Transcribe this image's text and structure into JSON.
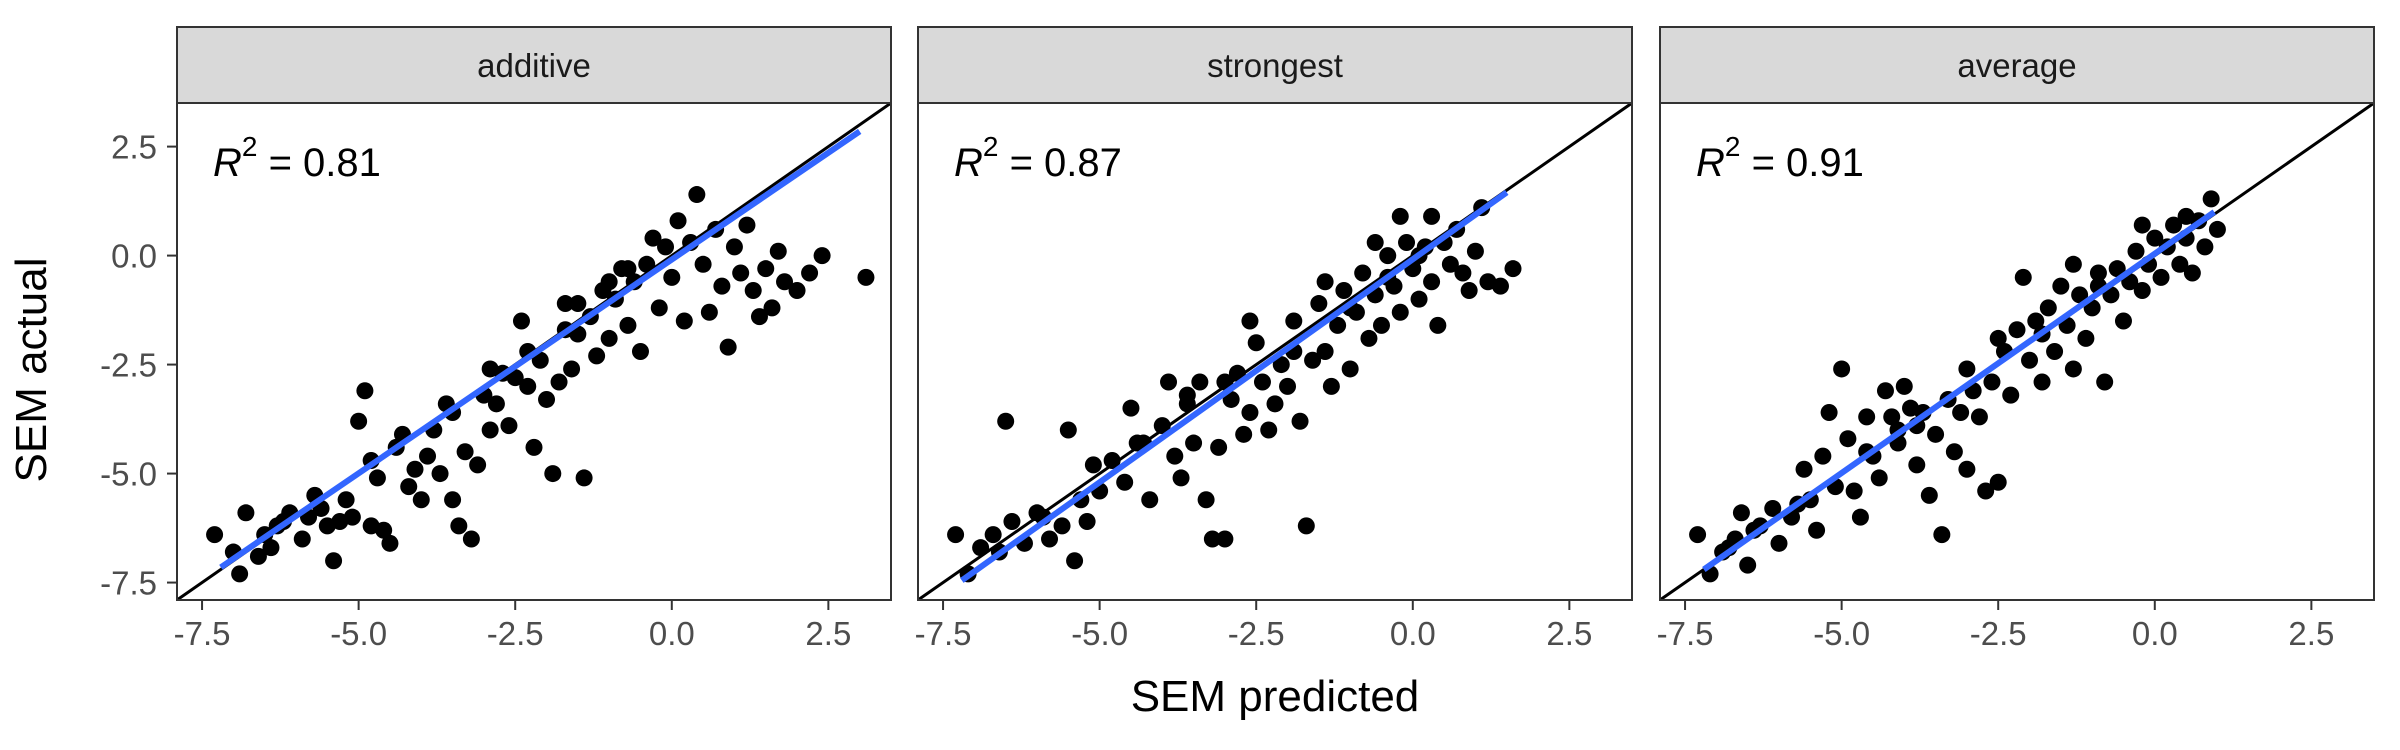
{
  "chart_data": {
    "type": "scatter",
    "xlabel": "SEM predicted",
    "ylabel": "SEM actual",
    "xlim": [
      -7.9,
      3.5
    ],
    "ylim": [
      -7.9,
      3.5
    ],
    "x_ticks": [
      -7.5,
      -5.0,
      -2.5,
      0.0,
      2.5
    ],
    "x_tick_labels": [
      "-7.5",
      "-5.0",
      "-2.5",
      "0.0",
      "2.5"
    ],
    "y_ticks": [
      -7.5,
      -5.0,
      -2.5,
      0.0,
      2.5
    ],
    "y_tick_labels": [
      "-7.5",
      "-5.0",
      "-2.5",
      "0.0",
      "2.5"
    ],
    "grid": false,
    "identity_line": true,
    "colors": {
      "points": "#000000",
      "fit": "#3366ff",
      "identity": "#000000",
      "strip": "#d9d9d9",
      "panel_border": "#333333"
    },
    "panels": [
      {
        "strip": "additive",
        "annotation": {
          "r": "R",
          "sup": "2",
          "rest": " = 0.81"
        },
        "fit": {
          "x": [
            -7.2,
            3.0
          ],
          "y": [
            -7.15,
            2.85
          ]
        },
        "points": [
          [
            -7.3,
            -6.4
          ],
          [
            -7.0,
            -6.8
          ],
          [
            -6.8,
            -5.9
          ],
          [
            -6.9,
            -7.3
          ],
          [
            -6.6,
            -6.9
          ],
          [
            -6.5,
            -6.4
          ],
          [
            -6.4,
            -6.7
          ],
          [
            -6.2,
            -6.1
          ],
          [
            -6.1,
            -5.9
          ],
          [
            -5.9,
            -6.5
          ],
          [
            -5.8,
            -6.0
          ],
          [
            -5.7,
            -5.5
          ],
          [
            -5.5,
            -6.2
          ],
          [
            -5.4,
            -7.0
          ],
          [
            -5.3,
            -6.1
          ],
          [
            -5.2,
            -5.6
          ],
          [
            -5.1,
            -6.0
          ],
          [
            -5.0,
            -3.8
          ],
          [
            -4.9,
            -3.1
          ],
          [
            -4.8,
            -6.2
          ],
          [
            -4.7,
            -5.1
          ],
          [
            -4.6,
            -6.3
          ],
          [
            -4.5,
            -6.6
          ],
          [
            -4.4,
            -4.4
          ],
          [
            -4.3,
            -4.1
          ],
          [
            -4.2,
            -5.3
          ],
          [
            -4.1,
            -4.9
          ],
          [
            -4.0,
            -5.6
          ],
          [
            -3.9,
            -4.6
          ],
          [
            -3.8,
            -4.0
          ],
          [
            -3.7,
            -5.0
          ],
          [
            -3.6,
            -3.4
          ],
          [
            -3.5,
            -5.6
          ],
          [
            -3.4,
            -6.2
          ],
          [
            -3.3,
            -4.5
          ],
          [
            -3.2,
            -6.5
          ],
          [
            -3.1,
            -4.8
          ],
          [
            -3.0,
            -3.2
          ],
          [
            -2.9,
            -4.0
          ],
          [
            -2.8,
            -3.4
          ],
          [
            -2.7,
            -2.7
          ],
          [
            -2.6,
            -3.9
          ],
          [
            -2.5,
            -2.8
          ],
          [
            -2.4,
            -1.5
          ],
          [
            -2.3,
            -3.0
          ],
          [
            -2.2,
            -4.4
          ],
          [
            -2.1,
            -2.4
          ],
          [
            -2.0,
            -3.3
          ],
          [
            -1.9,
            -5.0
          ],
          [
            -1.8,
            -2.9
          ],
          [
            -1.7,
            -1.1
          ],
          [
            -1.6,
            -2.6
          ],
          [
            -1.5,
            -1.8
          ],
          [
            -1.4,
            -5.1
          ],
          [
            -1.3,
            -1.4
          ],
          [
            -1.2,
            -2.3
          ],
          [
            -1.1,
            -0.8
          ],
          [
            -1.0,
            -1.9
          ],
          [
            -0.9,
            -1.0
          ],
          [
            -0.8,
            -0.3
          ],
          [
            -0.7,
            -1.6
          ],
          [
            -0.6,
            -0.6
          ],
          [
            -0.5,
            -2.2
          ],
          [
            -0.4,
            -0.2
          ],
          [
            -0.3,
            0.4
          ],
          [
            -0.2,
            -1.2
          ],
          [
            -0.1,
            0.2
          ],
          [
            0.0,
            -0.5
          ],
          [
            0.1,
            0.8
          ],
          [
            0.2,
            -1.5
          ],
          [
            0.3,
            0.3
          ],
          [
            0.4,
            1.4
          ],
          [
            0.5,
            -0.2
          ],
          [
            0.6,
            -1.3
          ],
          [
            0.7,
            0.6
          ],
          [
            0.8,
            -0.7
          ],
          [
            0.9,
            -2.1
          ],
          [
            1.0,
            0.2
          ],
          [
            1.1,
            -0.4
          ],
          [
            1.2,
            0.7
          ],
          [
            1.3,
            -0.8
          ],
          [
            1.4,
            -1.4
          ],
          [
            1.5,
            -0.3
          ],
          [
            1.6,
            -1.2
          ],
          [
            1.7,
            0.1
          ],
          [
            1.8,
            -0.6
          ],
          [
            2.0,
            -0.8
          ],
          [
            2.2,
            -0.4
          ],
          [
            2.4,
            0.0
          ],
          [
            3.1,
            -0.5
          ],
          [
            -6.3,
            -6.2
          ],
          [
            -5.6,
            -5.8
          ],
          [
            -4.8,
            -4.7
          ],
          [
            -3.5,
            -3.6
          ],
          [
            -2.9,
            -2.6
          ],
          [
            -2.3,
            -2.2
          ],
          [
            -1.7,
            -1.7
          ],
          [
            -1.5,
            -1.1
          ],
          [
            -1.0,
            -0.6
          ],
          [
            -0.7,
            -0.3
          ]
        ]
      },
      {
        "strip": "strongest",
        "annotation": {
          "r": "R",
          "sup": "2",
          "rest": " = 0.87"
        },
        "fit": {
          "x": [
            -7.2,
            1.5
          ],
          "y": [
            -7.45,
            1.45
          ]
        },
        "points": [
          [
            -7.3,
            -6.4
          ],
          [
            -7.1,
            -7.3
          ],
          [
            -6.9,
            -6.7
          ],
          [
            -6.7,
            -6.4
          ],
          [
            -6.5,
            -3.8
          ],
          [
            -6.4,
            -6.1
          ],
          [
            -6.2,
            -6.6
          ],
          [
            -6.0,
            -5.9
          ],
          [
            -5.8,
            -6.5
          ],
          [
            -5.6,
            -6.2
          ],
          [
            -5.5,
            -4.0
          ],
          [
            -5.4,
            -7.0
          ],
          [
            -5.3,
            -5.6
          ],
          [
            -5.2,
            -6.1
          ],
          [
            -5.0,
            -5.4
          ],
          [
            -4.8,
            -4.7
          ],
          [
            -4.6,
            -5.2
          ],
          [
            -4.5,
            -3.5
          ],
          [
            -4.4,
            -4.3
          ],
          [
            -4.2,
            -5.6
          ],
          [
            -4.0,
            -3.9
          ],
          [
            -3.9,
            -2.9
          ],
          [
            -3.8,
            -4.6
          ],
          [
            -3.7,
            -5.1
          ],
          [
            -3.6,
            -3.2
          ],
          [
            -3.5,
            -4.3
          ],
          [
            -3.4,
            -2.9
          ],
          [
            -3.3,
            -5.6
          ],
          [
            -3.2,
            -6.5
          ],
          [
            -3.1,
            -4.4
          ],
          [
            -3.0,
            -6.5
          ],
          [
            -2.9,
            -3.3
          ],
          [
            -2.8,
            -2.7
          ],
          [
            -2.7,
            -4.1
          ],
          [
            -2.6,
            -3.6
          ],
          [
            -2.5,
            -2.0
          ],
          [
            -2.4,
            -2.9
          ],
          [
            -2.3,
            -4.0
          ],
          [
            -2.2,
            -3.4
          ],
          [
            -2.1,
            -2.5
          ],
          [
            -2.0,
            -3.0
          ],
          [
            -1.9,
            -1.5
          ],
          [
            -1.8,
            -3.8
          ],
          [
            -1.7,
            -6.2
          ],
          [
            -1.6,
            -2.4
          ],
          [
            -1.5,
            -1.1
          ],
          [
            -1.4,
            -2.2
          ],
          [
            -1.3,
            -3.0
          ],
          [
            -1.2,
            -1.6
          ],
          [
            -1.1,
            -0.8
          ],
          [
            -1.0,
            -2.6
          ],
          [
            -0.9,
            -1.3
          ],
          [
            -0.8,
            -0.4
          ],
          [
            -0.7,
            -1.9
          ],
          [
            -0.6,
            -0.9
          ],
          [
            -0.5,
            -1.6
          ],
          [
            -0.4,
            0.0
          ],
          [
            -0.3,
            -0.7
          ],
          [
            -0.2,
            -1.3
          ],
          [
            -0.1,
            0.3
          ],
          [
            0.0,
            -0.3
          ],
          [
            0.1,
            -1.0
          ],
          [
            0.2,
            0.2
          ],
          [
            0.3,
            -0.6
          ],
          [
            0.4,
            -1.6
          ],
          [
            0.5,
            0.3
          ],
          [
            0.6,
            -0.2
          ],
          [
            0.7,
            0.6
          ],
          [
            0.8,
            -0.4
          ],
          [
            0.9,
            -0.8
          ],
          [
            1.0,
            0.1
          ],
          [
            1.1,
            1.1
          ],
          [
            1.2,
            -0.6
          ],
          [
            1.4,
            -0.7
          ],
          [
            1.6,
            -0.3
          ],
          [
            -0.2,
            0.9
          ],
          [
            0.3,
            0.9
          ],
          [
            -0.6,
            0.3
          ],
          [
            -1.4,
            -0.6
          ],
          [
            -2.6,
            -1.5
          ],
          [
            -3.6,
            -3.4
          ],
          [
            -4.3,
            -4.3
          ],
          [
            -5.1,
            -4.8
          ],
          [
            -5.9,
            -6.0
          ],
          [
            -6.6,
            -6.8
          ],
          [
            -3.0,
            -2.9
          ],
          [
            -1.9,
            -2.2
          ],
          [
            -1.0,
            -1.2
          ],
          [
            -0.4,
            -0.5
          ],
          [
            0.1,
            0.0
          ]
        ]
      },
      {
        "strip": "average",
        "annotation": {
          "r": "R",
          "sup": "2",
          "rest": " = 0.91"
        },
        "fit": {
          "x": [
            -7.2,
            0.95
          ],
          "y": [
            -7.2,
            1.0
          ]
        },
        "points": [
          [
            -7.3,
            -6.4
          ],
          [
            -7.1,
            -7.3
          ],
          [
            -6.9,
            -6.8
          ],
          [
            -6.7,
            -6.5
          ],
          [
            -6.6,
            -5.9
          ],
          [
            -6.5,
            -7.1
          ],
          [
            -6.3,
            -6.2
          ],
          [
            -6.1,
            -5.8
          ],
          [
            -6.0,
            -6.6
          ],
          [
            -5.8,
            -6.0
          ],
          [
            -5.6,
            -4.9
          ],
          [
            -5.5,
            -5.6
          ],
          [
            -5.4,
            -6.3
          ],
          [
            -5.3,
            -4.6
          ],
          [
            -5.2,
            -3.6
          ],
          [
            -5.1,
            -5.3
          ],
          [
            -5.0,
            -2.6
          ],
          [
            -4.9,
            -4.2
          ],
          [
            -4.8,
            -5.4
          ],
          [
            -4.7,
            -6.0
          ],
          [
            -4.6,
            -3.7
          ],
          [
            -4.5,
            -4.6
          ],
          [
            -4.4,
            -5.1
          ],
          [
            -4.3,
            -3.1
          ],
          [
            -4.2,
            -3.7
          ],
          [
            -4.1,
            -4.3
          ],
          [
            -4.0,
            -3.0
          ],
          [
            -3.9,
            -3.5
          ],
          [
            -3.8,
            -4.8
          ],
          [
            -3.7,
            -3.6
          ],
          [
            -3.6,
            -5.5
          ],
          [
            -3.5,
            -4.1
          ],
          [
            -3.4,
            -6.4
          ],
          [
            -3.3,
            -3.3
          ],
          [
            -3.2,
            -4.5
          ],
          [
            -3.1,
            -3.6
          ],
          [
            -3.0,
            -4.9
          ],
          [
            -2.9,
            -3.1
          ],
          [
            -2.8,
            -3.7
          ],
          [
            -2.7,
            -5.4
          ],
          [
            -2.6,
            -2.9
          ],
          [
            -2.5,
            -5.2
          ],
          [
            -2.4,
            -2.2
          ],
          [
            -2.3,
            -3.2
          ],
          [
            -2.2,
            -1.7
          ],
          [
            -2.1,
            -0.5
          ],
          [
            -2.0,
            -2.4
          ],
          [
            -1.9,
            -1.5
          ],
          [
            -1.8,
            -2.9
          ],
          [
            -1.7,
            -1.2
          ],
          [
            -1.6,
            -2.2
          ],
          [
            -1.5,
            -0.7
          ],
          [
            -1.4,
            -1.6
          ],
          [
            -1.3,
            -2.6
          ],
          [
            -1.2,
            -0.9
          ],
          [
            -1.1,
            -1.9
          ],
          [
            -1.0,
            -1.2
          ],
          [
            -0.9,
            -0.4
          ],
          [
            -0.8,
            -2.9
          ],
          [
            -0.7,
            -0.9
          ],
          [
            -0.6,
            -0.3
          ],
          [
            -0.5,
            -1.5
          ],
          [
            -0.4,
            -0.6
          ],
          [
            -0.3,
            0.1
          ],
          [
            -0.2,
            -0.8
          ],
          [
            -0.1,
            -0.2
          ],
          [
            0.0,
            0.4
          ],
          [
            0.1,
            -0.5
          ],
          [
            0.2,
            0.2
          ],
          [
            0.3,
            0.7
          ],
          [
            0.4,
            -0.2
          ],
          [
            0.5,
            0.4
          ],
          [
            0.6,
            -0.4
          ],
          [
            0.7,
            0.8
          ],
          [
            0.8,
            0.2
          ],
          [
            0.9,
            1.3
          ],
          [
            1.0,
            0.6
          ],
          [
            -1.3,
            -0.2
          ],
          [
            -2.5,
            -1.9
          ],
          [
            -3.0,
            -2.6
          ],
          [
            -3.8,
            -3.9
          ],
          [
            -4.6,
            -4.5
          ],
          [
            -5.7,
            -5.7
          ],
          [
            -6.4,
            -6.3
          ],
          [
            -0.2,
            0.7
          ],
          [
            0.5,
            0.9
          ],
          [
            -0.9,
            -0.7
          ],
          [
            -1.8,
            -1.8
          ],
          [
            -4.1,
            -4.0
          ],
          [
            -6.8,
            -6.7
          ]
        ]
      }
    ]
  }
}
